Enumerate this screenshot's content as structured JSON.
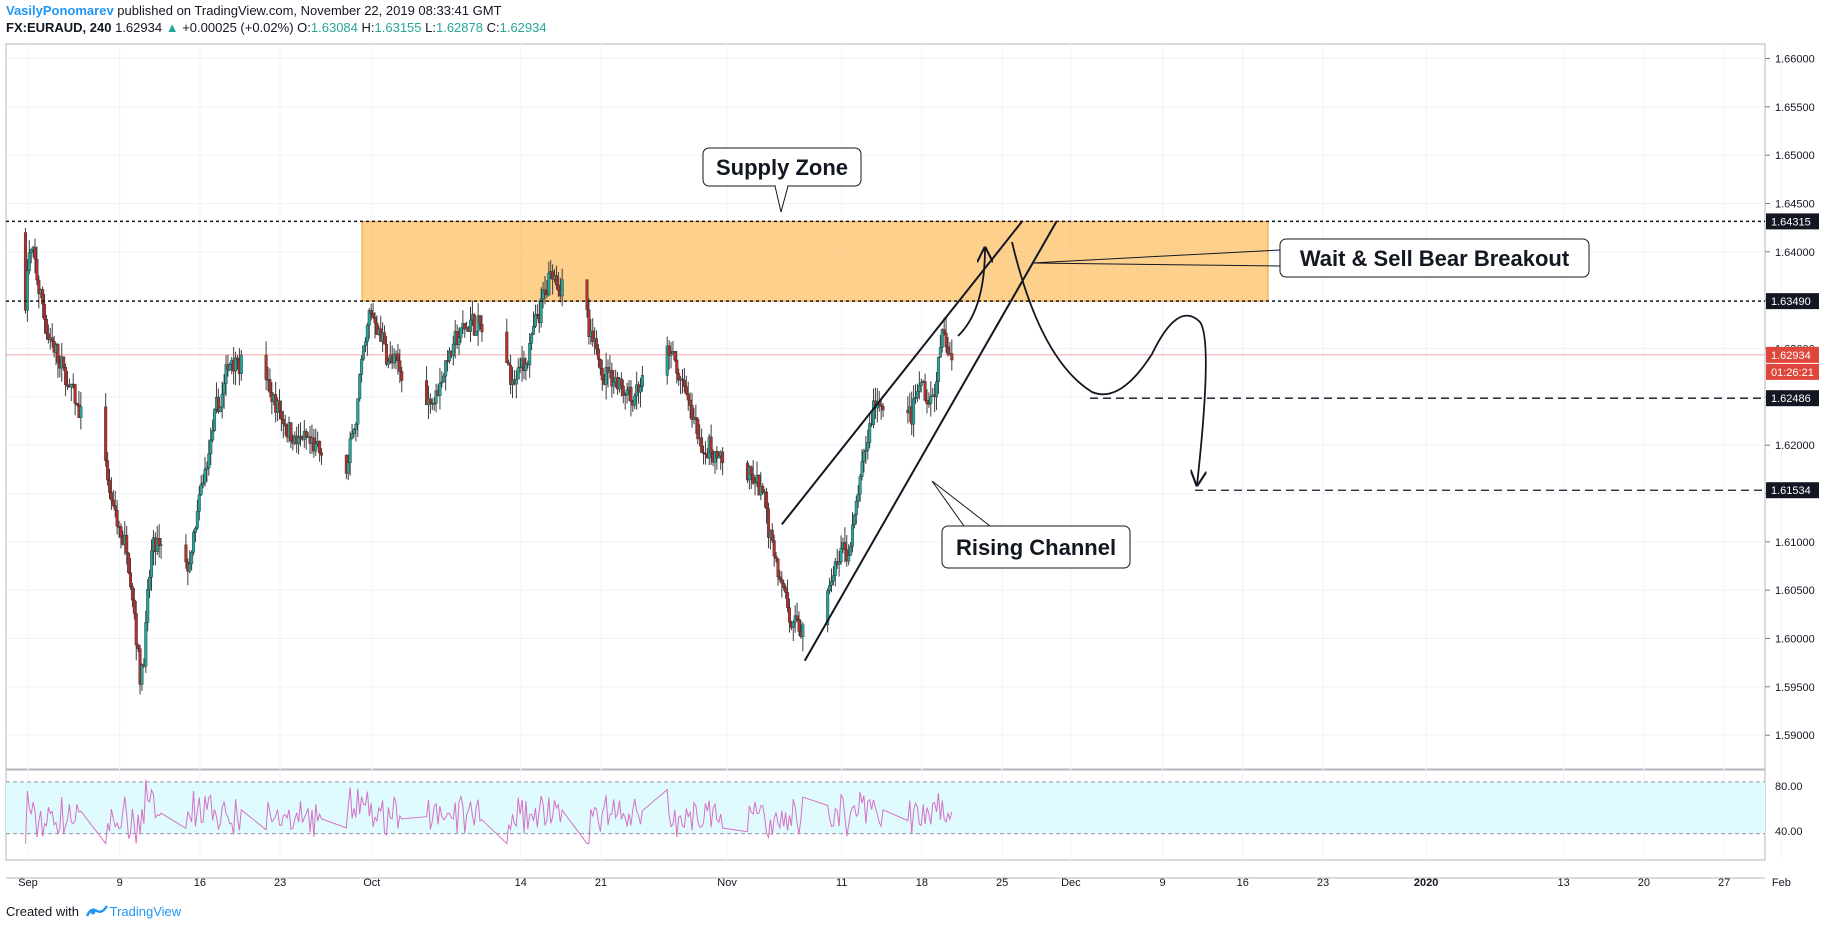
{
  "header": {
    "author": "VasilyPonomarev",
    "published": "published on TradingView.com, November 22, 2019 08:33:41 GMT",
    "symbol": "FX:EURAUD, 240",
    "last": "1.62934",
    "arrow": "▲",
    "change": "+0.00025 (+0.02%)",
    "o_label": "O:",
    "o_val": "1.63084",
    "h_label": "H:",
    "h_val": "1.63155",
    "l_label": "L:",
    "l_val": "1.62878",
    "c_label": "C:",
    "c_val": "1.62934"
  },
  "footer": {
    "created": "Created with",
    "brand": "TradingView"
  },
  "colors": {
    "up": "#26a69a",
    "down": "#b2312b",
    "zone": "#fbb040",
    "rsi_fill": "#e0fbfd",
    "rsi_line": "#d671c6",
    "price_tag": "#e0473c",
    "level_tag": "#131722"
  },
  "chart_data": {
    "type": "candlestick",
    "title": "",
    "instrument": "FX:EURAUD",
    "timeframe": "240",
    "ylim": [
      1.5865,
      1.6615
    ],
    "y_ticks": [
      "1.66000",
      "1.65500",
      "1.65000",
      "1.64500",
      "1.64000",
      "1.63500",
      "1.63000",
      "1.62500",
      "1.62000",
      "1.61500",
      "1.61000",
      "1.60500",
      "1.60000",
      "1.59500",
      "1.59000"
    ],
    "x_ticks": [
      "Sep",
      "9",
      "16",
      "23",
      "Oct",
      "14",
      "21",
      "Nov",
      "11",
      "18",
      "25",
      "Dec",
      "9",
      "16",
      "23",
      "2020",
      "13",
      "20",
      "27",
      "Feb"
    ],
    "price_path": [
      [
        "Sep 2",
        1.642
      ],
      [
        "Sep 4",
        1.631
      ],
      [
        "Sep 6",
        1.625
      ],
      [
        "Sep 9",
        1.615
      ],
      [
        "Sep 11",
        1.608
      ],
      [
        "Sep 12",
        1.595
      ],
      [
        "Sep 13",
        1.61
      ],
      [
        "Sep 16",
        1.606
      ],
      [
        "Sep 18",
        1.62
      ],
      [
        "Sep 20",
        1.63
      ],
      [
        "Sep 23",
        1.625
      ],
      [
        "Sep 26",
        1.62
      ],
      [
        "Sep 30",
        1.617
      ],
      [
        "Oct 2",
        1.634
      ],
      [
        "Oct 4",
        1.628
      ],
      [
        "Oct 7",
        1.624
      ],
      [
        "Oct 9",
        1.63
      ],
      [
        "Oct 11",
        1.633
      ],
      [
        "Oct 14",
        1.626
      ],
      [
        "Oct 16",
        1.63
      ],
      [
        "Oct 18",
        1.639
      ],
      [
        "Oct 21",
        1.63
      ],
      [
        "Oct 25",
        1.625
      ],
      [
        "Oct 28",
        1.63
      ],
      [
        "Oct 31",
        1.62
      ],
      [
        "Nov 5",
        1.615
      ],
      [
        "Nov 7",
        1.606
      ],
      [
        "Nov 8",
        1.6
      ],
      [
        "Nov 11",
        1.606
      ],
      [
        "Nov 13",
        1.61
      ],
      [
        "Nov 14",
        1.618
      ],
      [
        "Nov 15",
        1.625
      ],
      [
        "Nov 18",
        1.622
      ],
      [
        "Nov 19",
        1.626
      ],
      [
        "Nov 20",
        1.624
      ],
      [
        "Nov 21",
        1.631
      ],
      [
        "Nov 22",
        1.6293
      ]
    ],
    "rsi_levels": [
      80.0,
      40.0
    ],
    "rsi_tick_labels": [
      "80.00",
      "40.00"
    ],
    "price_tags": [
      {
        "label": "1.64315",
        "kind": "level"
      },
      {
        "label": "1.63490",
        "kind": "level"
      },
      {
        "label": "1.62934",
        "kind": "last"
      },
      {
        "label": "01:26:21",
        "kind": "countdown"
      },
      {
        "label": "1.62486",
        "kind": "level"
      },
      {
        "label": "1.61534",
        "kind": "level"
      }
    ],
    "levels": [
      1.64315,
      1.6349,
      1.62486,
      1.61534
    ],
    "supply_zone": {
      "from": "Oct 1",
      "to": "Dec 22",
      "high": 1.64315,
      "low": 1.6349
    },
    "channel": {
      "upper": [
        [
          "Nov 7",
          1.6118
        ],
        [
          "Nov 28",
          1.6432
        ]
      ],
      "lower": [
        [
          "Nov 9",
          1.5977
        ],
        [
          "Dec 1",
          1.6432
        ]
      ]
    },
    "annotations": [
      {
        "text": "Supply Zone"
      },
      {
        "text": "Wait & Sell Bear Breakout"
      },
      {
        "text": "Rising Channel"
      }
    ]
  }
}
